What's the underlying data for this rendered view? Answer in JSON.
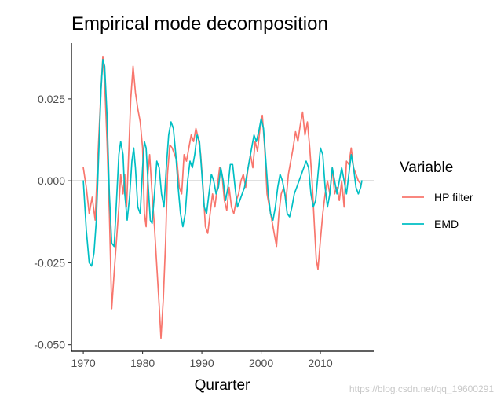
{
  "chart_data": {
    "type": "line",
    "title": "Empirical mode decomposition",
    "xlabel": "Qurarter",
    "ylabel": "",
    "xlim": [
      1968,
      2019
    ],
    "ylim": [
      -0.052,
      0.042
    ],
    "x_ticks": [
      1970,
      1980,
      1990,
      2000,
      2010
    ],
    "y_ticks": [
      -0.05,
      -0.025,
      0,
      0.025
    ],
    "y_tick_labels": [
      "-0.050",
      "-0.025",
      "0.000",
      "0.025"
    ],
    "reference_line": 0,
    "legend": {
      "title": "Variable",
      "placement": "right"
    },
    "series": [
      {
        "name": "HP filter",
        "color": "#F8766D",
        "points": [
          [
            1970.0,
            0.004
          ],
          [
            1970.5,
            -0.002
          ],
          [
            1971.0,
            -0.01
          ],
          [
            1971.5,
            -0.005
          ],
          [
            1972.0,
            -0.012
          ],
          [
            1972.5,
            0.009
          ],
          [
            1973.0,
            0.028
          ],
          [
            1973.3,
            0.038
          ],
          [
            1973.6,
            0.03
          ],
          [
            1974.0,
            0.012
          ],
          [
            1974.4,
            -0.01
          ],
          [
            1974.8,
            -0.039
          ],
          [
            1975.2,
            -0.028
          ],
          [
            1975.6,
            -0.018
          ],
          [
            1976.0,
            -0.008
          ],
          [
            1976.3,
            0.002
          ],
          [
            1976.7,
            -0.004
          ],
          [
            1977.0,
            0.002
          ],
          [
            1977.3,
            -0.008
          ],
          [
            1977.7,
            0.01
          ],
          [
            1978.0,
            0.025
          ],
          [
            1978.4,
            0.035
          ],
          [
            1978.8,
            0.027
          ],
          [
            1979.2,
            0.022
          ],
          [
            1979.6,
            0.018
          ],
          [
            1980.0,
            0.01
          ],
          [
            1980.3,
            -0.01
          ],
          [
            1980.6,
            -0.014
          ],
          [
            1980.9,
            0.002
          ],
          [
            1981.2,
            0.008
          ],
          [
            1981.6,
            -0.004
          ],
          [
            1982.0,
            -0.014
          ],
          [
            1982.4,
            -0.026
          ],
          [
            1982.8,
            -0.038
          ],
          [
            1983.1,
            -0.048
          ],
          [
            1983.5,
            -0.036
          ],
          [
            1983.9,
            -0.018
          ],
          [
            1984.2,
            0.002
          ],
          [
            1984.6,
            0.011
          ],
          [
            1985.0,
            0.01
          ],
          [
            1985.4,
            0.008
          ],
          [
            1985.8,
            0.006
          ],
          [
            1986.2,
            -0.002
          ],
          [
            1986.6,
            -0.004
          ],
          [
            1987.0,
            0.008
          ],
          [
            1987.4,
            0.006
          ],
          [
            1987.8,
            0.01
          ],
          [
            1988.2,
            0.014
          ],
          [
            1988.6,
            0.012
          ],
          [
            1989.0,
            0.016
          ],
          [
            1989.4,
            0.013
          ],
          [
            1989.8,
            0.008
          ],
          [
            1990.2,
            -0.002
          ],
          [
            1990.6,
            -0.014
          ],
          [
            1991.0,
            -0.016
          ],
          [
            1991.4,
            -0.01
          ],
          [
            1991.8,
            -0.004
          ],
          [
            1992.2,
            -0.008
          ],
          [
            1992.6,
            -0.002
          ],
          [
            1993.0,
            0.004
          ],
          [
            1993.4,
            0.002
          ],
          [
            1993.8,
            -0.006
          ],
          [
            1994.2,
            -0.009
          ],
          [
            1994.6,
            -0.002
          ],
          [
            1995.0,
            -0.008
          ],
          [
            1995.4,
            -0.01
          ],
          [
            1995.8,
            -0.006
          ],
          [
            1996.2,
            -0.004
          ],
          [
            1996.6,
            0.0
          ],
          [
            1997.0,
            0.002
          ],
          [
            1997.4,
            -0.002
          ],
          [
            1997.8,
            0.004
          ],
          [
            1998.2,
            0.008
          ],
          [
            1998.6,
            0.004
          ],
          [
            1999.0,
            0.012
          ],
          [
            1999.4,
            0.009
          ],
          [
            1999.8,
            0.016
          ],
          [
            2000.2,
            0.02
          ],
          [
            2000.6,
            0.01
          ],
          [
            2001.0,
            -0.004
          ],
          [
            2001.4,
            -0.008
          ],
          [
            2001.8,
            -0.012
          ],
          [
            2002.2,
            -0.016
          ],
          [
            2002.6,
            -0.02
          ],
          [
            2003.0,
            -0.01
          ],
          [
            2003.4,
            -0.004
          ],
          [
            2003.8,
            -0.002
          ],
          [
            2004.2,
            -0.006
          ],
          [
            2004.6,
            0.002
          ],
          [
            2005.0,
            0.006
          ],
          [
            2005.4,
            0.01
          ],
          [
            2005.8,
            0.015
          ],
          [
            2006.2,
            0.012
          ],
          [
            2006.6,
            0.017
          ],
          [
            2007.0,
            0.021
          ],
          [
            2007.4,
            0.014
          ],
          [
            2007.8,
            0.018
          ],
          [
            2008.2,
            0.01
          ],
          [
            2008.6,
            0.0
          ],
          [
            2009.0,
            -0.014
          ],
          [
            2009.3,
            -0.024
          ],
          [
            2009.6,
            -0.027
          ],
          [
            2010.0,
            -0.018
          ],
          [
            2010.4,
            -0.01
          ],
          [
            2010.8,
            -0.004
          ],
          [
            2011.2,
            0.0
          ],
          [
            2011.6,
            -0.004
          ],
          [
            2012.0,
            0.004
          ],
          [
            2012.4,
            -0.004
          ],
          [
            2012.8,
            -0.002
          ],
          [
            2013.2,
            -0.006
          ],
          [
            2013.6,
            0.0
          ],
          [
            2014.0,
            -0.008
          ],
          [
            2014.4,
            0.006
          ],
          [
            2014.8,
            0.005
          ],
          [
            2015.2,
            0.01
          ],
          [
            2015.6,
            0.004
          ],
          [
            2016.0,
            0.002
          ],
          [
            2016.4,
            0.0
          ],
          [
            2016.8,
            -0.001
          ]
        ]
      },
      {
        "name": "EMD",
        "color": "#00BFC4",
        "points": [
          [
            1970.0,
            0.0
          ],
          [
            1970.5,
            -0.015
          ],
          [
            1971.0,
            -0.025
          ],
          [
            1971.4,
            -0.026
          ],
          [
            1971.8,
            -0.022
          ],
          [
            1972.2,
            -0.012
          ],
          [
            1972.6,
            0.008
          ],
          [
            1973.0,
            0.028
          ],
          [
            1973.3,
            0.037
          ],
          [
            1973.6,
            0.035
          ],
          [
            1974.0,
            0.02
          ],
          [
            1974.4,
            -0.004
          ],
          [
            1974.8,
            -0.019
          ],
          [
            1975.2,
            -0.02
          ],
          [
            1975.6,
            -0.006
          ],
          [
            1976.0,
            0.008
          ],
          [
            1976.3,
            0.012
          ],
          [
            1976.7,
            0.008
          ],
          [
            1977.0,
            -0.004
          ],
          [
            1977.4,
            -0.012
          ],
          [
            1977.8,
            -0.005
          ],
          [
            1978.2,
            0.006
          ],
          [
            1978.5,
            0.01
          ],
          [
            1978.8,
            0.004
          ],
          [
            1979.2,
            -0.008
          ],
          [
            1979.6,
            -0.01
          ],
          [
            1980.0,
            0.004
          ],
          [
            1980.3,
            0.012
          ],
          [
            1980.6,
            0.01
          ],
          [
            1980.9,
            0.0
          ],
          [
            1981.3,
            -0.012
          ],
          [
            1981.6,
            -0.013
          ],
          [
            1982.0,
            -0.004
          ],
          [
            1982.4,
            0.006
          ],
          [
            1982.8,
            0.004
          ],
          [
            1983.2,
            -0.004
          ],
          [
            1983.6,
            -0.008
          ],
          [
            1984.0,
            0.004
          ],
          [
            1984.4,
            0.014
          ],
          [
            1984.8,
            0.018
          ],
          [
            1985.2,
            0.016
          ],
          [
            1985.6,
            0.008
          ],
          [
            1986.0,
            -0.002
          ],
          [
            1986.4,
            -0.01
          ],
          [
            1986.8,
            -0.014
          ],
          [
            1987.2,
            -0.01
          ],
          [
            1987.6,
            0.0
          ],
          [
            1988.0,
            0.006
          ],
          [
            1988.4,
            0.004
          ],
          [
            1988.8,
            0.008
          ],
          [
            1989.2,
            0.014
          ],
          [
            1989.6,
            0.012
          ],
          [
            1990.0,
            0.002
          ],
          [
            1990.4,
            -0.008
          ],
          [
            1990.8,
            -0.01
          ],
          [
            1991.2,
            -0.004
          ],
          [
            1991.6,
            0.002
          ],
          [
            1992.0,
            0.0
          ],
          [
            1992.4,
            -0.004
          ],
          [
            1992.8,
            -0.002
          ],
          [
            1993.2,
            0.004
          ],
          [
            1993.6,
            0.0
          ],
          [
            1994.0,
            -0.006
          ],
          [
            1994.4,
            -0.002
          ],
          [
            1994.8,
            0.005
          ],
          [
            1995.2,
            0.005
          ],
          [
            1995.6,
            -0.002
          ],
          [
            1996.0,
            -0.008
          ],
          [
            1996.4,
            -0.006
          ],
          [
            1996.8,
            -0.004
          ],
          [
            1997.2,
            -0.002
          ],
          [
            1997.6,
            0.002
          ],
          [
            1998.0,
            0.006
          ],
          [
            1998.4,
            0.01
          ],
          [
            1998.8,
            0.014
          ],
          [
            1999.2,
            0.012
          ],
          [
            1999.6,
            0.015
          ],
          [
            2000.0,
            0.019
          ],
          [
            2000.4,
            0.016
          ],
          [
            2000.8,
            0.006
          ],
          [
            2001.2,
            -0.004
          ],
          [
            2001.6,
            -0.01
          ],
          [
            2002.0,
            -0.012
          ],
          [
            2002.4,
            -0.008
          ],
          [
            2002.8,
            -0.002
          ],
          [
            2003.2,
            0.002
          ],
          [
            2003.6,
            0.0
          ],
          [
            2004.0,
            -0.004
          ],
          [
            2004.4,
            -0.01
          ],
          [
            2004.8,
            -0.011
          ],
          [
            2005.2,
            -0.008
          ],
          [
            2005.6,
            -0.004
          ],
          [
            2006.0,
            -0.002
          ],
          [
            2006.4,
            0.0
          ],
          [
            2006.8,
            0.002
          ],
          [
            2007.2,
            0.004
          ],
          [
            2007.6,
            0.006
          ],
          [
            2008.0,
            0.004
          ],
          [
            2008.4,
            -0.004
          ],
          [
            2008.8,
            -0.008
          ],
          [
            2009.2,
            -0.006
          ],
          [
            2009.6,
            0.002
          ],
          [
            2010.0,
            0.01
          ],
          [
            2010.4,
            0.008
          ],
          [
            2010.8,
            -0.002
          ],
          [
            2011.2,
            -0.008
          ],
          [
            2011.6,
            -0.004
          ],
          [
            2012.0,
            0.004
          ],
          [
            2012.4,
            0.0
          ],
          [
            2012.8,
            -0.004
          ],
          [
            2013.2,
            0.0
          ],
          [
            2013.6,
            0.004
          ],
          [
            2014.0,
            0.0
          ],
          [
            2014.4,
            -0.004
          ],
          [
            2014.8,
            0.002
          ],
          [
            2015.2,
            0.008
          ],
          [
            2015.6,
            0.004
          ],
          [
            2016.0,
            -0.002
          ],
          [
            2016.4,
            -0.004
          ],
          [
            2016.8,
            -0.002
          ],
          [
            2017.0,
            0.0
          ]
        ]
      }
    ]
  },
  "watermark": "https://blog.csdn.net/qq_19600291"
}
